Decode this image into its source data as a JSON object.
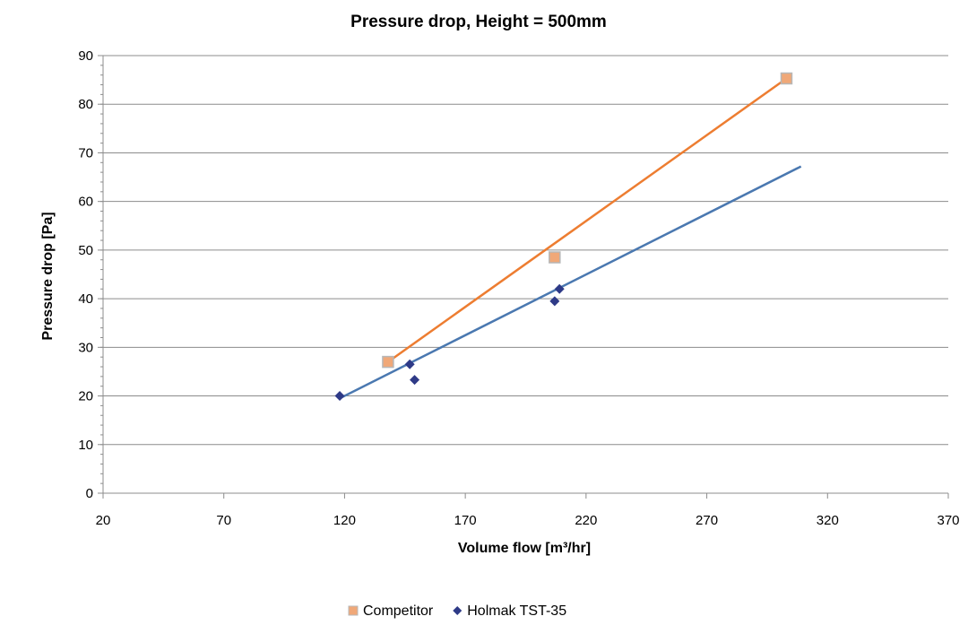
{
  "chart_data": {
    "type": "scatter",
    "title": "Pressure drop, Height = 500mm",
    "xlabel": "Volume flow [m³/hr]",
    "ylabel": "Pressure drop [Pa]",
    "xlim": [
      20,
      370
    ],
    "ylim": [
      0,
      90
    ],
    "xticks": [
      "20",
      "70",
      "120",
      "170",
      "220",
      "270",
      "320",
      "370"
    ],
    "yticks": [
      "0",
      "10",
      "20",
      "30",
      "40",
      "50",
      "60",
      "70",
      "80",
      "90"
    ],
    "grid": "horizontal",
    "legend_position": "bottom",
    "series": [
      {
        "name": "Competitor",
        "marker": "square",
        "color": "#f0a878",
        "trendline_color": "#ed7d31",
        "points": [
          [
            138,
            27
          ],
          [
            207,
            48.5
          ],
          [
            303,
            85.3
          ]
        ],
        "trendline": [
          [
            138,
            27
          ],
          [
            303,
            85.3
          ]
        ]
      },
      {
        "name": "Holmak TST-35",
        "marker": "diamond",
        "color": "#2e3a87",
        "trendline_color": "#4a78b0",
        "points": [
          [
            118,
            20
          ],
          [
            147,
            26.5
          ],
          [
            149,
            23.3
          ],
          [
            207,
            39.5
          ],
          [
            209,
            42
          ]
        ],
        "trendline": [
          [
            118,
            19.5
          ],
          [
            309,
            67.2
          ]
        ]
      }
    ]
  }
}
